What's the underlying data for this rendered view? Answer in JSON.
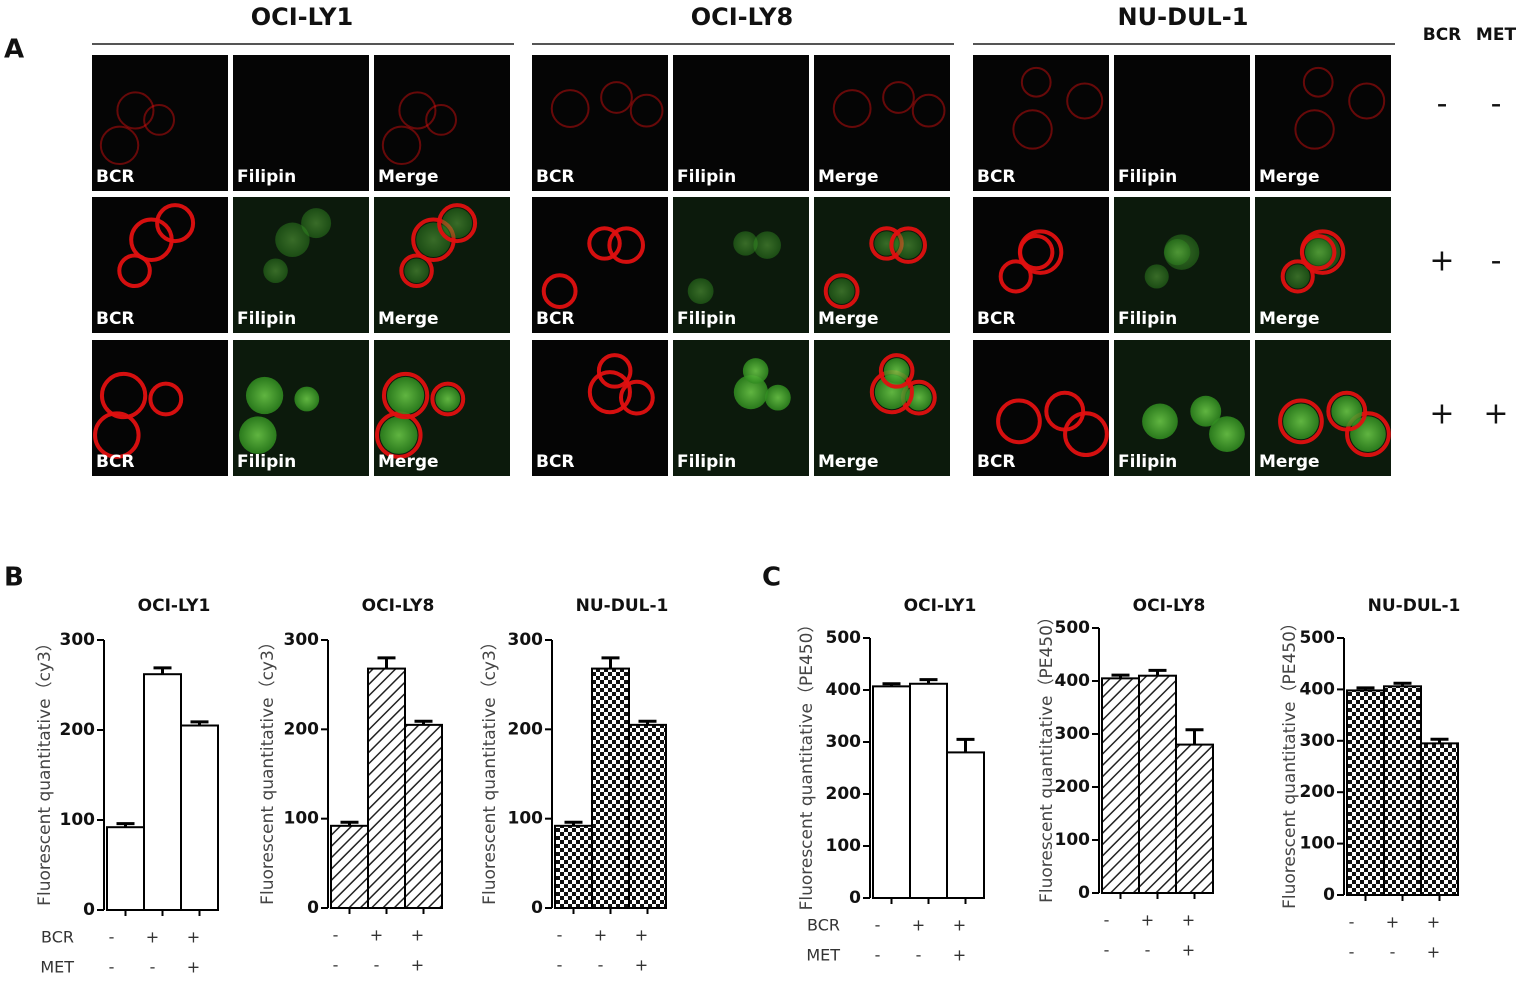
{
  "panel_a": {
    "label": "A",
    "cell_lines": [
      "OCI-LY1",
      "OCI-LY8",
      "NU-DUL-1"
    ],
    "channels": [
      "BCR",
      "Filipin",
      "Merge"
    ],
    "condition_headers": [
      "BCR",
      "MET"
    ],
    "conditions": [
      [
        "-",
        "-"
      ],
      [
        "+",
        "-"
      ],
      [
        "+",
        "+"
      ]
    ]
  },
  "chart_data": [
    {
      "type": "bar",
      "panel": "B",
      "title": "OCI-LY1",
      "y_label": "Fluorescent quantitative（cy3）",
      "pattern": "none",
      "values": [
        92,
        262,
        205
      ],
      "errors": [
        4,
        7,
        4
      ],
      "ylim": [
        0,
        300
      ],
      "yticks": [
        0,
        100,
        200,
        300
      ],
      "row_labels": [
        "BCR",
        "MET"
      ],
      "bcr": [
        "-",
        "+",
        "+"
      ],
      "met": [
        "-",
        "-",
        "+"
      ]
    },
    {
      "type": "bar",
      "title": "OCI-LY8",
      "y_label": "Fluorescent quantitative（cy3）",
      "pattern": "hatch",
      "values": [
        92,
        268,
        205
      ],
      "errors": [
        4,
        12,
        4
      ],
      "ylim": [
        0,
        300
      ],
      "yticks": [
        0,
        100,
        200,
        300
      ],
      "bcr": [
        "-",
        "+",
        "+"
      ],
      "met": [
        "-",
        "-",
        "+"
      ]
    },
    {
      "type": "bar",
      "title": "NU-DUL-1",
      "y_label": "Fluorescent quantitative（cy3）",
      "pattern": "check",
      "values": [
        92,
        268,
        205
      ],
      "errors": [
        4,
        12,
        4
      ],
      "ylim": [
        0,
        300
      ],
      "yticks": [
        0,
        100,
        200,
        300
      ],
      "bcr": [
        "-",
        "+",
        "+"
      ],
      "met": [
        "-",
        "-",
        "+"
      ]
    },
    {
      "type": "bar",
      "panel": "C",
      "title": "OCI-LY1",
      "y_label": "Fluorescent quantitative（PE450）",
      "pattern": "none",
      "values": [
        407,
        412,
        280
      ],
      "errors": [
        5,
        8,
        25
      ],
      "ylim": [
        0,
        500
      ],
      "yticks": [
        0,
        100,
        200,
        300,
        400,
        500
      ],
      "row_labels": [
        "BCR",
        "MET"
      ],
      "bcr": [
        "-",
        "+",
        "+"
      ],
      "met": [
        "-",
        "-",
        "+"
      ]
    },
    {
      "type": "bar",
      "title": "OCI-LY8",
      "y_label": "Fluorescent quantitative（PE450）",
      "pattern": "hatch",
      "values": [
        405,
        410,
        280
      ],
      "errors": [
        6,
        10,
        28
      ],
      "ylim": [
        0,
        500
      ],
      "yticks": [
        0,
        100,
        200,
        300,
        400,
        500
      ],
      "bcr": [
        "-",
        "+",
        "+"
      ],
      "met": [
        "-",
        "-",
        "+"
      ]
    },
    {
      "type": "bar",
      "title": "NU-DUL-1",
      "y_label": "Fluorescent quantitative（PE450）",
      "pattern": "check",
      "values": [
        398,
        406,
        295
      ],
      "errors": [
        5,
        6,
        8
      ],
      "ylim": [
        0,
        500
      ],
      "yticks": [
        0,
        100,
        200,
        300,
        400,
        500
      ],
      "bcr": [
        "-",
        "+",
        "+"
      ],
      "met": [
        "-",
        "-",
        "+"
      ]
    }
  ]
}
